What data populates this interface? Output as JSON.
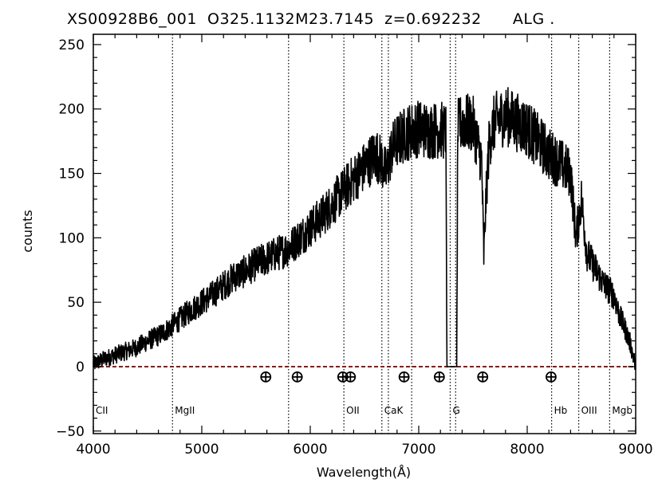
{
  "chart_data": {
    "type": "line",
    "title": "XS00928B6_001  O325.1132M23.7145  z=0.692232      ALG .",
    "xlabel": "Wavelength(Å)",
    "ylabel": "counts",
    "xlim": [
      4000,
      9000
    ],
    "ylim": [
      -52,
      258
    ],
    "x_ticks": [
      4000,
      5000,
      6000,
      7000,
      8000,
      9000
    ],
    "y_ticks": [
      -50,
      0,
      50,
      100,
      150,
      200,
      250
    ],
    "grid": false,
    "legend": "none",
    "zero_line": {
      "y": 0,
      "color": "#8b1a1a",
      "style": "dashed"
    },
    "spectrum_envelope": {
      "x": [
        4000,
        4100,
        4200,
        4300,
        4400,
        4500,
        4600,
        4700,
        4800,
        4900,
        5000,
        5100,
        5200,
        5300,
        5400,
        5500,
        5600,
        5700,
        5800,
        5900,
        6000,
        6100,
        6200,
        6300,
        6400,
        6500,
        6600,
        6650,
        6700,
        6750,
        6800,
        6900,
        7000,
        7100,
        7200,
        7250,
        7260,
        7350,
        7360,
        7400,
        7500,
        7580,
        7600,
        7620,
        7650,
        7700,
        7800,
        7900,
        8000,
        8100,
        8200,
        8300,
        8400,
        8450,
        8500,
        8550,
        8600,
        8700,
        8800,
        8850,
        8900,
        8950,
        9000
      ],
      "y": [
        2,
        6,
        9,
        12,
        15,
        20,
        24,
        30,
        37,
        44,
        50,
        56,
        63,
        70,
        74,
        80,
        84,
        88,
        92,
        100,
        108,
        116,
        126,
        136,
        146,
        155,
        165,
        160,
        150,
        168,
        175,
        182,
        185,
        183,
        184,
        182,
        0,
        0,
        185,
        190,
        188,
        160,
        85,
        130,
        175,
        190,
        195,
        190,
        185,
        175,
        165,
        158,
        150,
        100,
        130,
        88,
        80,
        65,
        55,
        40,
        30,
        18,
        0
      ]
    },
    "line_markers": [
      {
        "x": 4000,
        "label": "CII"
      },
      {
        "x": 4730,
        "label": "MgII"
      },
      {
        "x": 5800,
        "label": ""
      },
      {
        "x": 6310,
        "label": "OII"
      },
      {
        "x": 6660,
        "label": "CaK"
      },
      {
        "x": 6720,
        "label": ""
      },
      {
        "x": 6935,
        "label": ""
      },
      {
        "x": 7290,
        "label": "G"
      },
      {
        "x": 7340,
        "label": ""
      },
      {
        "x": 8225,
        "label": "Hb"
      },
      {
        "x": 8475,
        "label": "OIII"
      },
      {
        "x": 8760,
        "label": "Mgb"
      }
    ],
    "sky_markers": {
      "x": [
        5590,
        5880,
        6300,
        6370,
        6865,
        7190,
        7590,
        8220
      ],
      "y": -8
    }
  },
  "colors": {
    "spectrum": "#000000",
    "zero_line": "#8b1a1a",
    "markers": "#000000"
  }
}
